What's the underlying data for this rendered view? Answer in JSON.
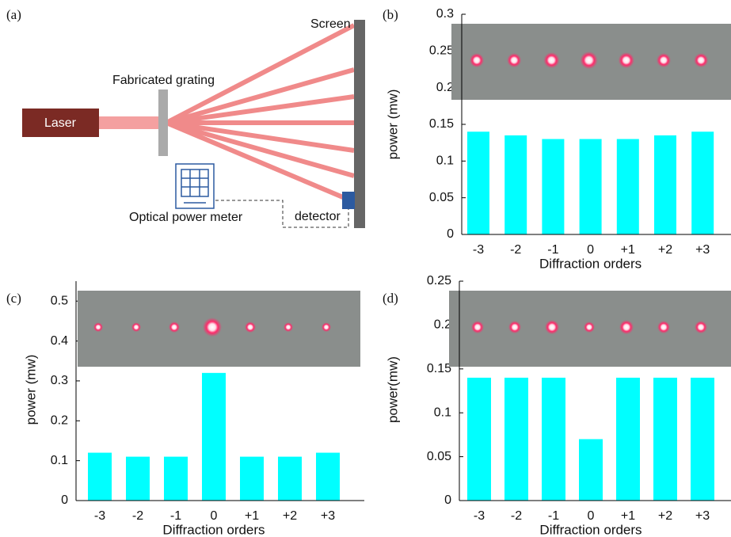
{
  "diagram": {
    "panel_label": "(a)",
    "laser": "Laser",
    "grating": "Fabricated grating",
    "screen": "Screen",
    "meter": "Optical power meter",
    "detector": "detector"
  },
  "chart_data": [
    {
      "type": "bar",
      "panel_label": "(b)",
      "x_label": "Diffraction orders",
      "y_label": "power (mw)",
      "categories": [
        "-3",
        "-2",
        "-1",
        "0",
        "+1",
        "+2",
        "+3"
      ],
      "values": [
        0.14,
        0.135,
        0.13,
        0.13,
        0.13,
        0.135,
        0.14
      ],
      "color": "#00ffff",
      "ylim": [
        0,
        0.3
      ],
      "yticks": [
        0,
        0.05,
        0.1,
        0.15,
        0.2,
        0.25,
        0.3
      ]
    },
    {
      "type": "bar",
      "panel_label": "(c)",
      "x_label": "Diffraction orders",
      "y_label": "power (mw)",
      "categories": [
        "-3",
        "-2",
        "-1",
        "0",
        "+1",
        "+2",
        "+3"
      ],
      "values": [
        0.12,
        0.11,
        0.11,
        0.32,
        0.11,
        0.11,
        0.12
      ],
      "color": "#00ffff",
      "ylim": [
        0,
        0.55
      ],
      "yticks": [
        0,
        0.1,
        0.2,
        0.3,
        0.4,
        0.5
      ]
    },
    {
      "type": "bar",
      "panel_label": "(d)",
      "x_label": "Diffraction orders",
      "y_label": "power(mw)",
      "categories": [
        "-3",
        "-2",
        "-1",
        "0",
        "+1",
        "+2",
        "+3"
      ],
      "values": [
        0.14,
        0.14,
        0.14,
        0.07,
        0.14,
        0.14,
        0.14
      ],
      "color": "#00ffff",
      "ylim": [
        0,
        0.25
      ],
      "yticks": [
        0,
        0.05,
        0.1,
        0.15,
        0.2,
        0.25
      ]
    }
  ]
}
